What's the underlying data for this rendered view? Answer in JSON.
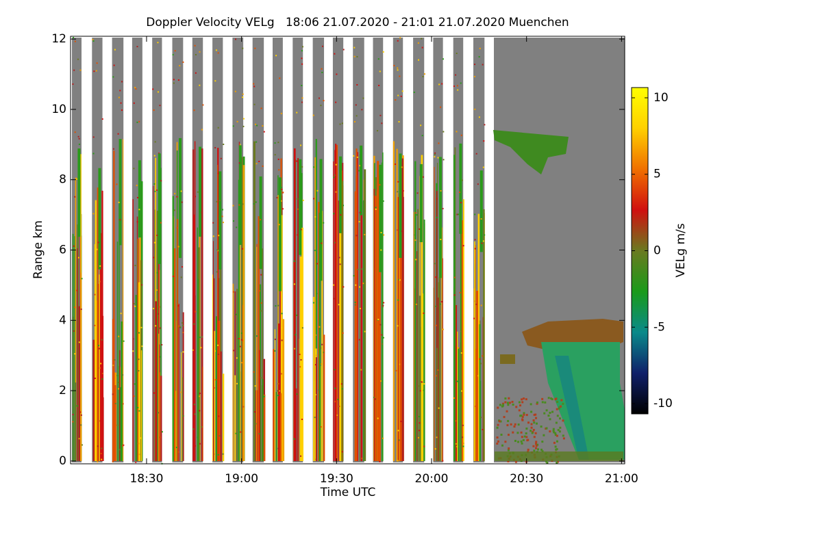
{
  "chart_data": {
    "type": "heatmap",
    "title": "Doppler Velocity VELg   18:06 21.07.2020 - 21:01 21.07.2020 Muenchen",
    "xlabel": "Time UTC",
    "ylabel": "Range km",
    "colorbar_label": "VELg m/s",
    "xlim": [
      1086,
      1261
    ],
    "xticks": [
      {
        "value": 1110,
        "label": "18:30"
      },
      {
        "value": 1140,
        "label": "19:00"
      },
      {
        "value": 1170,
        "label": "19:30"
      },
      {
        "value": 1200,
        "label": "20:00"
      },
      {
        "value": 1230,
        "label": "20:30"
      },
      {
        "value": 1260,
        "label": "21:00"
      }
    ],
    "ylim": [
      -0.08,
      12.08
    ],
    "yticks": [
      0,
      2,
      4,
      6,
      8,
      10,
      12
    ],
    "zlim": [
      -10.67,
      10.67
    ],
    "zticks": [
      10,
      5,
      0,
      -5,
      -10
    ],
    "colormap": [
      "#000000",
      "#10206a",
      "#0a8a8a",
      "#1a9a1a",
      "#6a7a20",
      "#d01010",
      "#f07000",
      "#ffd000",
      "#ffff00"
    ]
  }
}
